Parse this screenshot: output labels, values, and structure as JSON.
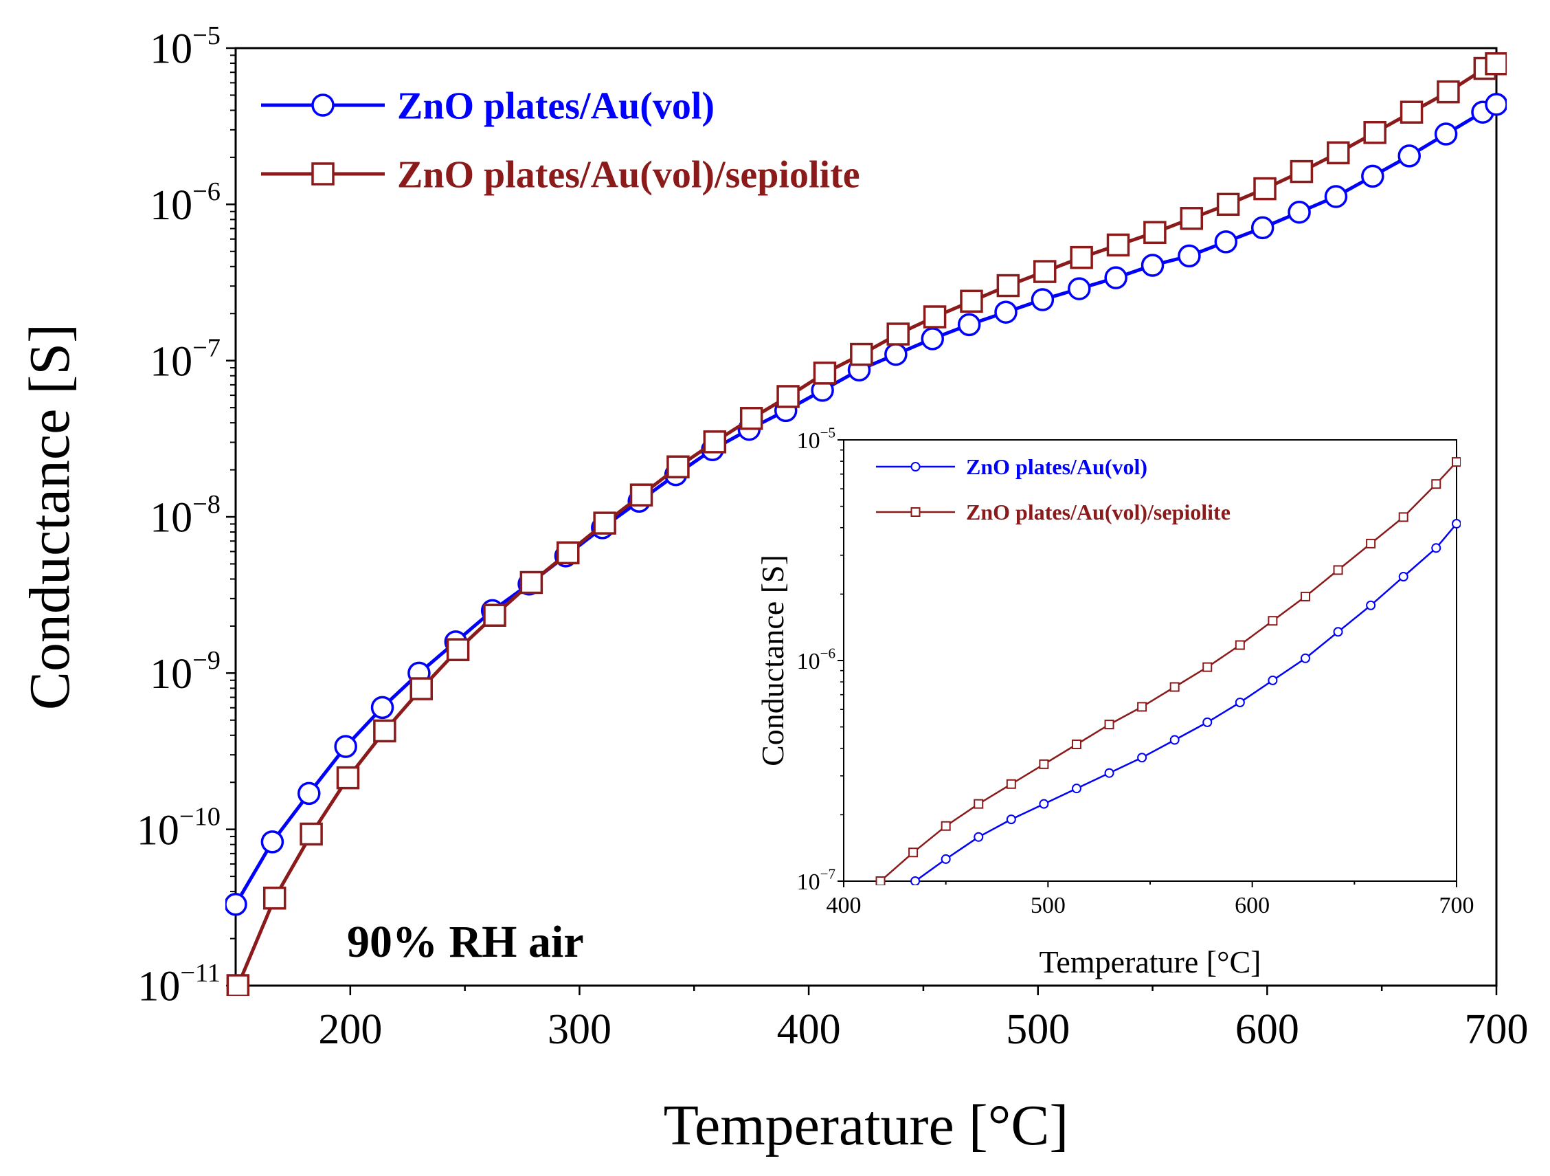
{
  "chart_data": [
    {
      "id": "main",
      "type": "line",
      "xlabel": "Temperature [°C]",
      "ylabel": "Conductance [S]",
      "xlim": [
        150,
        700
      ],
      "ylim_log10": [
        -11,
        -5
      ],
      "y_scale": "log",
      "x_ticks": [
        200,
        300,
        400,
        500,
        600,
        700
      ],
      "y_ticks_exp": [
        -5,
        -6,
        -7,
        -8,
        -9,
        -10,
        -11
      ],
      "tick_base": "10",
      "annotation": "90% RH air",
      "legend_position": "top-left",
      "series": [
        {
          "name": "ZnO plates/Au(vol)",
          "color": "#0000ff",
          "marker": "circle",
          "x": [
            150,
            166,
            182,
            198,
            214,
            230,
            246,
            262,
            278,
            294,
            310,
            326,
            342,
            358,
            374,
            390,
            406,
            422,
            438,
            454,
            470,
            486,
            502,
            518,
            534,
            550,
            566,
            582,
            598,
            614,
            630,
            646,
            662,
            678,
            694,
            700
          ],
          "y_log10": [
            -10.48,
            -10.08,
            -9.77,
            -9.47,
            -9.22,
            -9.0,
            -8.8,
            -8.6,
            -8.43,
            -8.25,
            -8.07,
            -7.9,
            -7.73,
            -7.57,
            -7.44,
            -7.32,
            -7.19,
            -7.06,
            -6.96,
            -6.86,
            -6.77,
            -6.69,
            -6.61,
            -6.54,
            -6.47,
            -6.39,
            -6.33,
            -6.24,
            -6.15,
            -6.05,
            -5.95,
            -5.82,
            -5.69,
            -5.55,
            -5.41,
            -5.36
          ]
        },
        {
          "name": "ZnO plates/Au(vol)/sepiolite",
          "color": "#8b1a1a",
          "marker": "square",
          "x": [
            151,
            167,
            183,
            199,
            215,
            231,
            247,
            263,
            279,
            295,
            311,
            327,
            343,
            359,
            375,
            391,
            407,
            423,
            439,
            455,
            471,
            487,
            503,
            519,
            535,
            551,
            567,
            583,
            599,
            615,
            631,
            647,
            663,
            679,
            695,
            700
          ],
          "y_log10": [
            -11.0,
            -10.44,
            -10.03,
            -9.67,
            -9.37,
            -9.1,
            -8.85,
            -8.63,
            -8.42,
            -8.23,
            -8.04,
            -7.86,
            -7.68,
            -7.52,
            -7.37,
            -7.23,
            -7.08,
            -6.96,
            -6.83,
            -6.72,
            -6.62,
            -6.52,
            -6.43,
            -6.34,
            -6.26,
            -6.18,
            -6.09,
            -6.0,
            -5.9,
            -5.79,
            -5.67,
            -5.54,
            -5.41,
            -5.28,
            -5.13,
            -5.1
          ]
        }
      ]
    },
    {
      "id": "inset",
      "type": "line",
      "xlabel": "Temperature [°C]",
      "ylabel": "Conductance [S]",
      "xlim": [
        400,
        700
      ],
      "ylim_log10": [
        -7,
        -5
      ],
      "y_scale": "log",
      "x_ticks": [
        400,
        500,
        600,
        700
      ],
      "y_ticks_exp": [
        -5,
        -6,
        -7
      ],
      "tick_base": "10",
      "legend_position": "top-left",
      "series": [
        {
          "name": "ZnO plates/Au(vol)",
          "color": "#0000ff",
          "marker": "circle",
          "x": [
            435,
            450,
            466,
            482,
            498,
            514,
            530,
            546,
            562,
            578,
            594,
            610,
            626,
            642,
            658,
            674,
            690,
            700
          ],
          "y_log10": [
            -7.0,
            -6.9,
            -6.8,
            -6.72,
            -6.65,
            -6.58,
            -6.51,
            -6.44,
            -6.36,
            -6.28,
            -6.19,
            -6.09,
            -5.99,
            -5.87,
            -5.75,
            -5.62,
            -5.49,
            -5.38
          ]
        },
        {
          "name": "ZnO plates/Au(vol)/sepiolite",
          "color": "#8b1a1a",
          "marker": "square",
          "x": [
            418,
            434,
            450,
            466,
            482,
            498,
            514,
            530,
            546,
            562,
            578,
            594,
            610,
            626,
            642,
            658,
            674,
            690,
            700
          ],
          "y_log10": [
            -7.0,
            -6.87,
            -6.75,
            -6.65,
            -6.56,
            -6.47,
            -6.38,
            -6.29,
            -6.21,
            -6.12,
            -6.03,
            -5.93,
            -5.82,
            -5.71,
            -5.59,
            -5.47,
            -5.35,
            -5.2,
            -5.1
          ]
        }
      ]
    }
  ]
}
